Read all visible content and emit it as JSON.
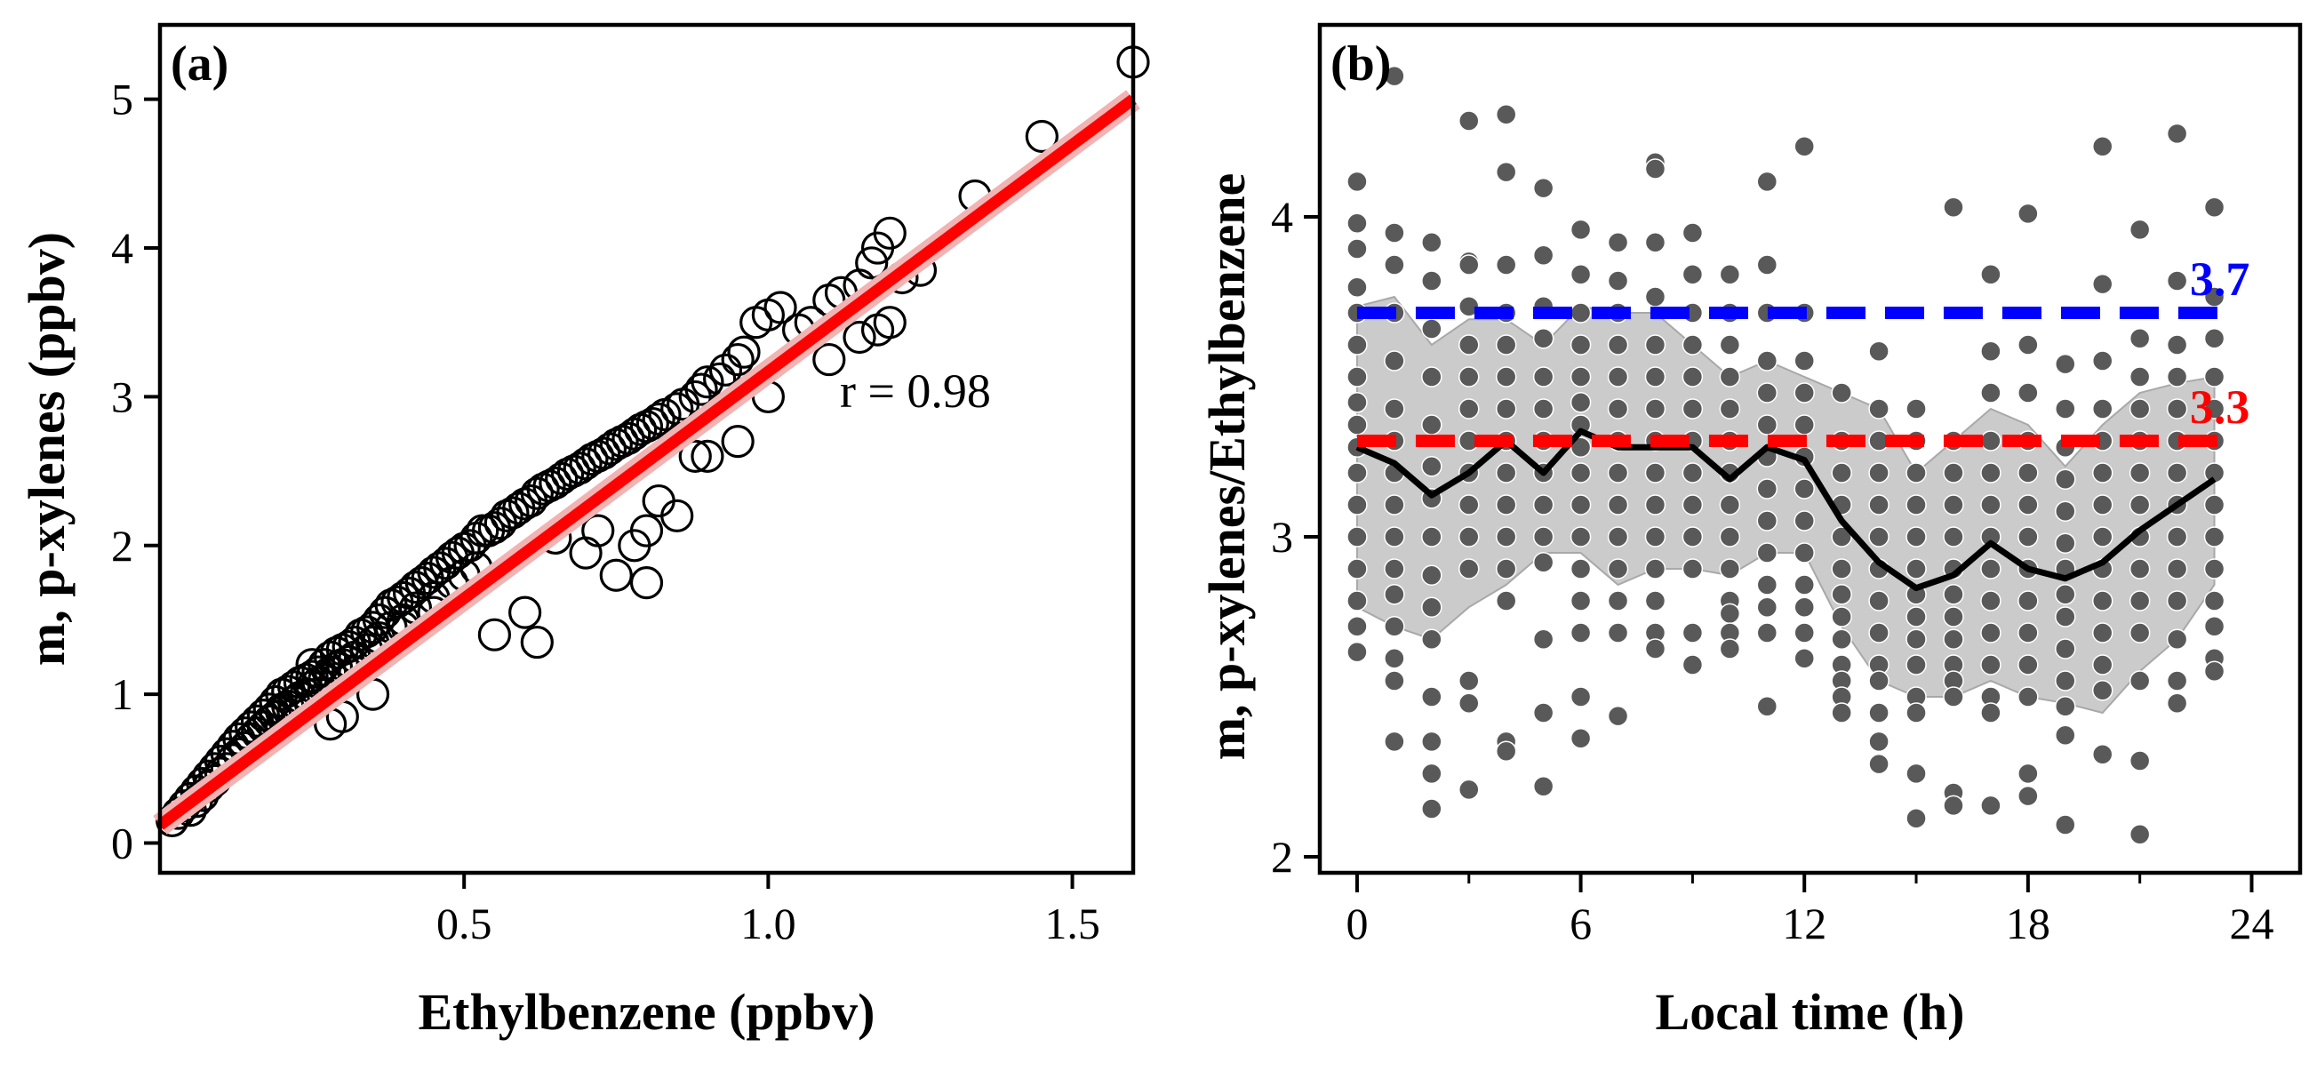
{
  "chart_data": [
    {
      "type": "scatter",
      "panel_label": "(a)",
      "xlabel": "Ethylbenzene (ppbv)",
      "ylabel": "m, p-xylenes (ppbv)",
      "xlim": [
        0.0,
        1.6
      ],
      "ylim": [
        -0.2,
        5.5
      ],
      "xticks": [
        0.5,
        1.0,
        1.5
      ],
      "xtick_labels": [
        "0.5",
        "1.0",
        "1.5"
      ],
      "yticks": [
        0,
        1,
        2,
        3,
        4,
        5
      ],
      "ytick_labels": [
        "0",
        "1",
        "2",
        "3",
        "4",
        "5"
      ],
      "grid": false,
      "annotation": "r = 0.98",
      "colors": {
        "points": "#000000",
        "fit_line": "#ff0000"
      },
      "fit_line": {
        "x": [
          0.0,
          1.6
        ],
        "y": [
          0.12,
          5.0
        ]
      },
      "points": {
        "x": [
          0.02,
          0.03,
          0.04,
          0.05,
          0.05,
          0.06,
          0.06,
          0.07,
          0.07,
          0.08,
          0.08,
          0.09,
          0.09,
          0.1,
          0.1,
          0.11,
          0.11,
          0.12,
          0.12,
          0.13,
          0.13,
          0.14,
          0.14,
          0.15,
          0.15,
          0.16,
          0.16,
          0.17,
          0.17,
          0.18,
          0.18,
          0.19,
          0.19,
          0.2,
          0.2,
          0.21,
          0.21,
          0.22,
          0.22,
          0.23,
          0.23,
          0.24,
          0.24,
          0.25,
          0.25,
          0.26,
          0.26,
          0.27,
          0.27,
          0.28,
          0.28,
          0.29,
          0.29,
          0.3,
          0.3,
          0.31,
          0.31,
          0.32,
          0.32,
          0.33,
          0.34,
          0.34,
          0.35,
          0.35,
          0.36,
          0.36,
          0.37,
          0.38,
          0.38,
          0.39,
          0.4,
          0.4,
          0.41,
          0.42,
          0.42,
          0.43,
          0.44,
          0.45,
          0.45,
          0.46,
          0.47,
          0.48,
          0.48,
          0.49,
          0.5,
          0.51,
          0.52,
          0.52,
          0.53,
          0.54,
          0.55,
          0.56,
          0.57,
          0.58,
          0.59,
          0.6,
          0.61,
          0.62,
          0.63,
          0.64,
          0.65,
          0.66,
          0.67,
          0.68,
          0.69,
          0.7,
          0.71,
          0.72,
          0.73,
          0.74,
          0.75,
          0.76,
          0.77,
          0.78,
          0.79,
          0.8,
          0.81,
          0.82,
          0.83,
          0.85,
          0.86,
          0.88,
          0.89,
          0.9,
          0.92,
          0.93,
          0.95,
          0.96,
          0.98,
          1.0,
          1.02,
          1.05,
          1.07,
          1.1,
          1.12,
          1.15,
          1.17,
          1.18,
          1.2,
          1.22,
          1.25,
          1.34,
          1.45,
          1.6,
          0.28,
          0.3,
          0.35,
          0.55,
          0.6,
          0.62,
          0.7,
          0.75,
          0.78,
          0.8,
          0.8,
          0.85,
          0.9,
          0.95,
          0.2,
          0.25,
          0.32,
          0.4,
          0.45,
          0.5,
          0.65,
          0.72,
          0.82,
          0.88,
          1.0,
          1.1,
          1.15,
          1.18,
          1.2
        ],
        "y": [
          0.15,
          0.2,
          0.25,
          0.3,
          0.22,
          0.35,
          0.28,
          0.4,
          0.32,
          0.45,
          0.38,
          0.5,
          0.42,
          0.55,
          0.47,
          0.6,
          0.5,
          0.65,
          0.56,
          0.7,
          0.6,
          0.74,
          0.64,
          0.78,
          0.7,
          0.82,
          0.74,
          0.86,
          0.78,
          0.9,
          0.82,
          0.95,
          0.85,
          1.0,
          0.88,
          1.02,
          0.92,
          1.05,
          0.95,
          1.08,
          0.98,
          1.1,
          1.0,
          1.12,
          1.05,
          1.15,
          1.08,
          1.2,
          1.1,
          1.25,
          1.15,
          1.28,
          1.18,
          1.3,
          1.2,
          1.32,
          1.22,
          1.35,
          1.25,
          1.4,
          1.42,
          1.3,
          1.45,
          1.35,
          1.5,
          1.38,
          1.55,
          1.6,
          1.45,
          1.62,
          1.65,
          1.5,
          1.68,
          1.72,
          1.58,
          1.75,
          1.78,
          1.82,
          1.65,
          1.85,
          1.88,
          1.92,
          1.75,
          1.95,
          1.98,
          2.0,
          2.05,
          1.85,
          2.1,
          2.1,
          2.12,
          2.15,
          2.2,
          2.22,
          2.25,
          2.28,
          2.3,
          2.35,
          2.38,
          2.4,
          2.42,
          2.45,
          2.48,
          2.5,
          2.52,
          2.55,
          2.58,
          2.6,
          2.62,
          2.65,
          2.68,
          2.7,
          2.72,
          2.75,
          2.78,
          2.8,
          2.82,
          2.85,
          2.88,
          2.92,
          2.95,
          3.0,
          3.05,
          3.1,
          3.12,
          3.18,
          3.25,
          3.3,
          3.5,
          3.55,
          3.6,
          3.45,
          3.5,
          3.65,
          3.7,
          3.75,
          3.9,
          4.0,
          4.1,
          3.8,
          3.85,
          4.35,
          4.75,
          5.25,
          0.8,
          0.85,
          1.0,
          1.4,
          1.55,
          1.35,
          1.95,
          1.8,
          2.0,
          1.75,
          2.1,
          2.2,
          2.6,
          2.7,
          0.9,
          1.2,
          1.15,
          1.45,
          1.55,
          1.8,
          2.05,
          2.1,
          2.3,
          2.6,
          3.0,
          3.25,
          3.4,
          3.45,
          3.5
        ]
      }
    },
    {
      "type": "scatter",
      "panel_label": "(b)",
      "xlabel": "Local time (h)",
      "ylabel": "m, p-xylenes/Ethylbenzene",
      "xlim": [
        -1,
        25.3
      ],
      "ylim": [
        1.95,
        4.6
      ],
      "xticks": [
        0,
        6,
        12,
        18,
        24
      ],
      "xtick_labels": [
        "0",
        "6",
        "12",
        "18",
        "24"
      ],
      "xticks_minor": [
        3,
        9,
        15,
        21
      ],
      "yticks": [
        2,
        3,
        4
      ],
      "ytick_labels": [
        "2",
        "3",
        "4"
      ],
      "grid": false,
      "colors": {
        "points": "#595959",
        "mean_line": "#000000",
        "band": "#c8c8c8",
        "ref_high": "#0000ff",
        "ref_low": "#ff0000"
      },
      "reference_lines": [
        {
          "value": 3.7,
          "label": "3.7",
          "color": "#0000ff"
        },
        {
          "value": 3.3,
          "label": "3.3",
          "color": "#ff0000"
        }
      ],
      "hourly_mean": {
        "x": [
          0,
          1,
          2,
          3,
          4,
          5,
          6,
          7,
          8,
          9,
          10,
          11,
          12,
          13,
          14,
          15,
          16,
          17,
          18,
          19,
          20,
          21,
          22,
          23
        ],
        "y": [
          3.28,
          3.23,
          3.13,
          3.2,
          3.3,
          3.2,
          3.33,
          3.28,
          3.28,
          3.28,
          3.18,
          3.28,
          3.24,
          3.05,
          2.92,
          2.84,
          2.88,
          2.98,
          2.9,
          2.87,
          2.92,
          3.02,
          3.1,
          3.18
        ]
      },
      "band": {
        "x": [
          0,
          1,
          2,
          3,
          4,
          5,
          6,
          7,
          8,
          9,
          10,
          11,
          12,
          13,
          14,
          15,
          16,
          17,
          18,
          19,
          20,
          21,
          22,
          23
        ],
        "upper": [
          3.72,
          3.75,
          3.6,
          3.68,
          3.68,
          3.6,
          3.72,
          3.7,
          3.7,
          3.6,
          3.5,
          3.55,
          3.5,
          3.45,
          3.4,
          3.2,
          3.3,
          3.4,
          3.35,
          3.22,
          3.35,
          3.45,
          3.48,
          3.5
        ],
        "lower": [
          2.78,
          2.72,
          2.68,
          2.78,
          2.85,
          2.95,
          2.95,
          2.85,
          2.9,
          2.9,
          2.88,
          2.95,
          2.95,
          2.72,
          2.55,
          2.5,
          2.5,
          2.55,
          2.5,
          2.48,
          2.45,
          2.58,
          2.68,
          2.85
        ]
      },
      "points": {
        "x": [
          0,
          0,
          0,
          0,
          0,
          0,
          0,
          0,
          0,
          0,
          0,
          0,
          0,
          0,
          0,
          0,
          0,
          1,
          1,
          1,
          1,
          1,
          1,
          1,
          1,
          1,
          1,
          1,
          1,
          1,
          1,
          1,
          1,
          2,
          2,
          2,
          2,
          2,
          2,
          2,
          2,
          2,
          2,
          2,
          2,
          2,
          2,
          2,
          3,
          3,
          3,
          3,
          3,
          3,
          3,
          3,
          3,
          3,
          3,
          3,
          3,
          3,
          3,
          4,
          4,
          4,
          4,
          4,
          4,
          4,
          4,
          4,
          4,
          4,
          4,
          4,
          4,
          4,
          5,
          5,
          5,
          5,
          5,
          5,
          5,
          5,
          5,
          5,
          5,
          5,
          5,
          5,
          6,
          6,
          6,
          6,
          6,
          6,
          6,
          6,
          6,
          6,
          6,
          6,
          6,
          6,
          6,
          6,
          7,
          7,
          7,
          7,
          7,
          7,
          7,
          7,
          7,
          7,
          7,
          7,
          7,
          7,
          8,
          8,
          8,
          8,
          8,
          8,
          8,
          8,
          8,
          8,
          8,
          8,
          8,
          8,
          8,
          9,
          9,
          9,
          9,
          9,
          9,
          9,
          9,
          9,
          9,
          9,
          9,
          9,
          10,
          10,
          10,
          10,
          10,
          10,
          10,
          10,
          10,
          10,
          10,
          10,
          10,
          10,
          11,
          11,
          11,
          11,
          11,
          11,
          11,
          11,
          11,
          11,
          11,
          11,
          11,
          11,
          12,
          12,
          12,
          12,
          12,
          12,
          12,
          12,
          12,
          12,
          12,
          12,
          12,
          13,
          13,
          13,
          13,
          13,
          13,
          13,
          13,
          13,
          13,
          13,
          13,
          13,
          14,
          14,
          14,
          14,
          14,
          14,
          14,
          14,
          14,
          14,
          14,
          14,
          14,
          14,
          15,
          15,
          15,
          15,
          15,
          15,
          15,
          15,
          15,
          15,
          15,
          15,
          15,
          15,
          16,
          16,
          16,
          16,
          16,
          16,
          16,
          16,
          16,
          16,
          16,
          16,
          16,
          16,
          17,
          17,
          17,
          17,
          17,
          17,
          17,
          17,
          17,
          17,
          17,
          17,
          17,
          17,
          18,
          18,
          18,
          18,
          18,
          18,
          18,
          18,
          18,
          18,
          18,
          18,
          18,
          18,
          19,
          19,
          19,
          19,
          19,
          19,
          19,
          19,
          19,
          19,
          19,
          19,
          19,
          19,
          20,
          20,
          20,
          20,
          20,
          20,
          20,
          20,
          20,
          20,
          20,
          20,
          20,
          20,
          21,
          21,
          21,
          21,
          21,
          21,
          21,
          21,
          21,
          21,
          21,
          21,
          21,
          21,
          22,
          22,
          22,
          22,
          22,
          22,
          22,
          22,
          22,
          22,
          22,
          22,
          22,
          22,
          23,
          23,
          23,
          23,
          23,
          23,
          23,
          23,
          23,
          23,
          23,
          23,
          23,
          23
        ],
        "y": [
          4.11,
          3.98,
          3.9,
          3.78,
          3.7,
          3.6,
          3.5,
          3.42,
          3.35,
          3.28,
          3.2,
          3.1,
          3.0,
          2.9,
          2.8,
          2.72,
          2.64,
          4.44,
          3.95,
          3.85,
          3.7,
          3.55,
          3.4,
          3.3,
          3.2,
          3.1,
          3.0,
          2.9,
          2.82,
          2.72,
          2.62,
          2.55,
          2.36,
          3.92,
          3.8,
          3.65,
          3.5,
          3.35,
          3.22,
          3.12,
          3.0,
          2.88,
          2.78,
          2.68,
          2.5,
          2.36,
          2.26,
          2.15,
          4.3,
          3.86,
          3.72,
          3.6,
          3.5,
          3.4,
          3.3,
          3.2,
          3.1,
          3.0,
          2.9,
          2.55,
          2.48,
          2.21,
          3.85,
          4.32,
          4.14,
          3.85,
          3.7,
          3.6,
          3.5,
          3.4,
          3.3,
          3.2,
          3.1,
          3.0,
          2.9,
          2.8,
          2.36,
          2.33,
          4.09,
          3.88,
          3.72,
          3.62,
          3.5,
          3.4,
          3.3,
          3.2,
          3.1,
          3.0,
          2.92,
          2.68,
          2.45,
          2.22,
          3.96,
          3.82,
          3.7,
          3.6,
          3.5,
          3.42,
          3.35,
          3.28,
          3.2,
          3.1,
          3.0,
          2.9,
          2.8,
          2.7,
          2.5,
          2.37,
          3.92,
          3.8,
          3.7,
          3.6,
          3.5,
          3.4,
          3.3,
          3.2,
          3.1,
          3.0,
          2.9,
          2.8,
          2.7,
          2.44,
          4.17,
          4.15,
          3.92,
          3.75,
          3.6,
          3.5,
          3.4,
          3.3,
          3.2,
          3.1,
          3.0,
          2.9,
          2.8,
          2.7,
          2.65,
          3.95,
          3.82,
          3.7,
          3.6,
          3.5,
          3.4,
          3.3,
          3.2,
          3.1,
          3.0,
          2.9,
          2.7,
          2.6,
          3.82,
          3.7,
          3.6,
          3.5,
          3.4,
          3.3,
          3.2,
          3.1,
          3.0,
          2.9,
          2.8,
          2.76,
          2.7,
          2.65,
          4.11,
          3.85,
          3.7,
          3.55,
          3.45,
          3.35,
          3.25,
          3.15,
          3.05,
          2.95,
          2.85,
          2.78,
          2.7,
          2.47,
          4.22,
          3.7,
          3.55,
          3.45,
          3.35,
          3.25,
          3.15,
          3.05,
          2.95,
          2.85,
          2.78,
          2.7,
          2.62,
          3.45,
          3.3,
          3.2,
          3.1,
          3.0,
          2.9,
          2.82,
          2.75,
          2.68,
          2.6,
          2.55,
          2.5,
          2.45,
          3.58,
          3.4,
          3.3,
          3.2,
          3.1,
          3.0,
          2.9,
          2.8,
          2.7,
          2.6,
          2.55,
          2.45,
          2.36,
          2.29,
          3.4,
          3.3,
          3.2,
          3.1,
          3.0,
          2.9,
          2.82,
          2.75,
          2.68,
          2.6,
          2.5,
          2.45,
          2.26,
          2.12,
          4.03,
          3.3,
          3.2,
          3.1,
          3.0,
          2.9,
          2.82,
          2.75,
          2.68,
          2.6,
          2.55,
          2.5,
          2.2,
          2.16,
          3.82,
          3.58,
          3.45,
          3.3,
          3.2,
          3.1,
          3.0,
          2.9,
          2.8,
          2.7,
          2.6,
          2.5,
          2.45,
          2.16,
          4.01,
          3.6,
          3.45,
          3.3,
          3.2,
          3.1,
          3.0,
          2.9,
          2.8,
          2.7,
          2.6,
          2.5,
          2.26,
          2.19,
          3.54,
          3.4,
          3.28,
          3.18,
          3.08,
          2.98,
          2.9,
          2.82,
          2.75,
          2.65,
          2.55,
          2.47,
          2.38,
          2.1,
          4.22,
          3.79,
          3.55,
          3.4,
          3.3,
          3.2,
          3.1,
          3.0,
          2.9,
          2.8,
          2.7,
          2.6,
          2.52,
          2.32,
          3.96,
          3.62,
          3.5,
          3.4,
          3.3,
          3.2,
          3.1,
          3.0,
          2.9,
          2.8,
          2.7,
          2.55,
          2.3,
          2.07,
          4.26,
          3.8,
          3.6,
          3.5,
          3.4,
          3.3,
          3.2,
          3.1,
          3.0,
          2.9,
          2.8,
          2.68,
          2.55,
          2.48,
          4.03,
          3.75,
          3.62,
          3.5,
          3.4,
          3.3,
          3.2,
          3.1,
          3.0,
          2.9,
          2.8,
          2.72,
          2.62,
          2.58
        ]
      }
    }
  ]
}
